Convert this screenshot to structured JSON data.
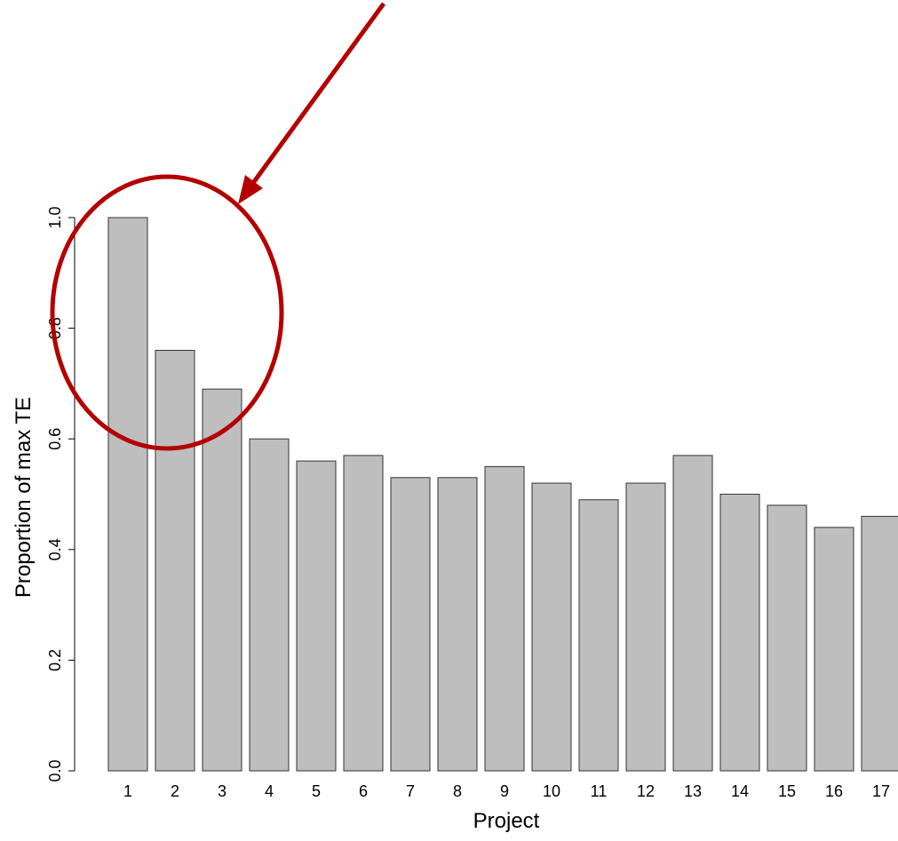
{
  "chart_data": {
    "type": "bar",
    "title": "",
    "xlabel": "Project",
    "ylabel": "Proportion of max TE",
    "categories": [
      "1",
      "2",
      "3",
      "4",
      "5",
      "6",
      "7",
      "8",
      "9",
      "10",
      "11",
      "12",
      "13",
      "14",
      "15",
      "16",
      "17"
    ],
    "values": [
      1.0,
      0.76,
      0.69,
      0.6,
      0.56,
      0.57,
      0.53,
      0.53,
      0.55,
      0.52,
      0.49,
      0.52,
      0.57,
      0.5,
      0.48,
      0.44,
      0.46
    ],
    "ylim": [
      0,
      1
    ],
    "yticks": [
      "0.0",
      "0.2",
      "0.4",
      "0.6",
      "0.8",
      "1.0"
    ],
    "grid": false,
    "legend": "none",
    "annotation": {
      "shape": "ellipse-with-arrow",
      "highlights_categories": [
        "1",
        "2",
        "3"
      ],
      "color": "#B30000"
    },
    "colors": {
      "bar_fill": "#BEBEBE",
      "bar_stroke": "#333333",
      "axis": "#000000"
    }
  }
}
